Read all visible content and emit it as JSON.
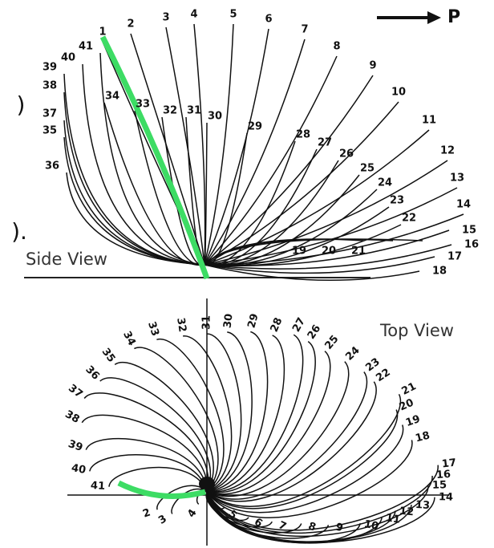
{
  "force_label": "P",
  "panel_marks": [
    ")",
    ")."
  ],
  "side_view": {
    "caption": "Side View",
    "labels": [
      "1",
      "2",
      "3",
      "4",
      "5",
      "6",
      "7",
      "8",
      "9",
      "10",
      "11",
      "12",
      "13",
      "14",
      "15",
      "16",
      "17",
      "18",
      "19",
      "20",
      "21",
      "22",
      "23",
      "24",
      "25",
      "26",
      "27",
      "28",
      "29",
      "30",
      "31",
      "32",
      "33",
      "34",
      "35",
      "36",
      "37",
      "38",
      "39",
      "40",
      "41"
    ]
  },
  "top_view": {
    "caption": "Top View",
    "labels": [
      "2",
      "3",
      "4",
      "5",
      "6",
      "7",
      "8",
      "9",
      "10",
      "11",
      "12",
      "13",
      "14",
      "15",
      "16",
      "17",
      "18",
      "19",
      "20",
      "21",
      "22",
      "23",
      "24",
      "25",
      "26",
      "27",
      "28",
      "29",
      "30",
      "31",
      "32",
      "33",
      "34",
      "35",
      "36",
      "37",
      "38",
      "39",
      "40",
      "41"
    ]
  }
}
